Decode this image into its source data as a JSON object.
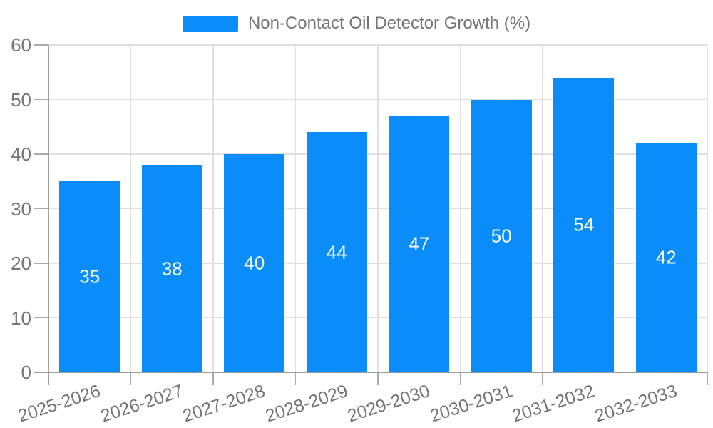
{
  "legend": {
    "label": "Non-Contact Oil Detector Growth (%)"
  },
  "chart_data": {
    "type": "bar",
    "title": "",
    "series_name": "Non-Contact Oil Detector Growth (%)",
    "categories": [
      "2025-2026",
      "2026-2027",
      "2027-2028",
      "2028-2029",
      "2029-2030",
      "2030-2031",
      "2031-2032",
      "2032-2033"
    ],
    "values": [
      35,
      38,
      40,
      44,
      47,
      50,
      54,
      42
    ],
    "xlabel": "",
    "ylabel": "",
    "ylim": [
      0,
      60
    ],
    "yticks": [
      0,
      10,
      20,
      30,
      40,
      50,
      60
    ],
    "grid": true,
    "legend_position": "top-center",
    "bar_color": "#0a8df9",
    "value_label_color": "#ffffff",
    "grid_color": "#e0e0e0",
    "tick_color": "#ababab",
    "axis_color": "#9e9e9e",
    "text_color": "#757575",
    "x_label_rotation_deg": -18
  }
}
